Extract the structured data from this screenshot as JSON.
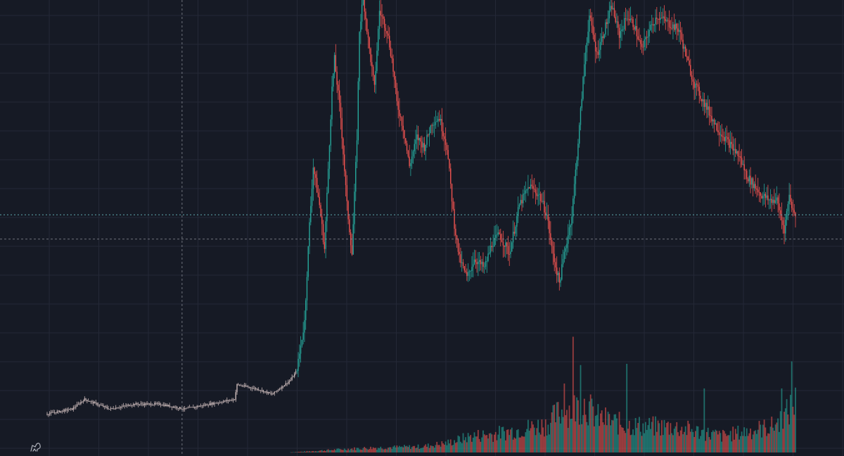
{
  "theme": {
    "background": "#161a25",
    "grid": "#242836",
    "up": "#26a69a",
    "down": "#ef5350",
    "line": "#c9b8b8",
    "crosshair": "#9598a1",
    "price_line": "#5fa8b0",
    "logo_color": "#b2b5be"
  },
  "logo": {
    "icon": "tradingview-logo-icon"
  },
  "crosshair": {
    "x_index": 108,
    "price": 0.47
  },
  "price_lines": [
    {
      "price": 0.52
    }
  ],
  "chart_data": {
    "type": "candlestick",
    "x_count": 600,
    "ylim": [
      0,
      1
    ],
    "volume_ylim": [
      0,
      1
    ],
    "grid": true,
    "price_anchors": [
      [
        0,
        0.11
      ],
      [
        20,
        0.12
      ],
      [
        30,
        0.14
      ],
      [
        50,
        0.12
      ],
      [
        70,
        0.13
      ],
      [
        90,
        0.13
      ],
      [
        110,
        0.12
      ],
      [
        130,
        0.13
      ],
      [
        150,
        0.14
      ],
      [
        152,
        0.17
      ],
      [
        170,
        0.16
      ],
      [
        180,
        0.15
      ],
      [
        190,
        0.17
      ],
      [
        195,
        0.18
      ],
      [
        200,
        0.2
      ],
      [
        206,
        0.3
      ],
      [
        210,
        0.5
      ],
      [
        213,
        0.62
      ],
      [
        218,
        0.54
      ],
      [
        222,
        0.45
      ],
      [
        228,
        0.78
      ],
      [
        230,
        0.84
      ],
      [
        235,
        0.72
      ],
      [
        240,
        0.54
      ],
      [
        244,
        0.44
      ],
      [
        248,
        0.68
      ],
      [
        250,
        0.9
      ],
      [
        253,
        0.97
      ],
      [
        257,
        0.88
      ],
      [
        262,
        0.78
      ],
      [
        266,
        0.94
      ],
      [
        272,
        0.9
      ],
      [
        276,
        0.84
      ],
      [
        280,
        0.75
      ],
      [
        285,
        0.7
      ],
      [
        290,
        0.62
      ],
      [
        296,
        0.68
      ],
      [
        302,
        0.66
      ],
      [
        308,
        0.71
      ],
      [
        314,
        0.72
      ],
      [
        320,
        0.66
      ],
      [
        326,
        0.5
      ],
      [
        330,
        0.43
      ],
      [
        336,
        0.39
      ],
      [
        342,
        0.43
      ],
      [
        350,
        0.41
      ],
      [
        356,
        0.46
      ],
      [
        362,
        0.48
      ],
      [
        370,
        0.44
      ],
      [
        378,
        0.54
      ],
      [
        386,
        0.58
      ],
      [
        394,
        0.56
      ],
      [
        400,
        0.52
      ],
      [
        404,
        0.45
      ],
      [
        410,
        0.38
      ],
      [
        414,
        0.44
      ],
      [
        420,
        0.52
      ],
      [
        426,
        0.7
      ],
      [
        430,
        0.83
      ],
      [
        434,
        0.93
      ],
      [
        440,
        0.85
      ],
      [
        446,
        0.9
      ],
      [
        452,
        0.95
      ],
      [
        458,
        0.89
      ],
      [
        464,
        0.93
      ],
      [
        470,
        0.91
      ],
      [
        476,
        0.86
      ],
      [
        482,
        0.9
      ],
      [
        488,
        0.93
      ],
      [
        494,
        0.92
      ],
      [
        500,
        0.91
      ],
      [
        506,
        0.9
      ],
      [
        512,
        0.84
      ],
      [
        518,
        0.79
      ],
      [
        524,
        0.76
      ],
      [
        530,
        0.73
      ],
      [
        536,
        0.7
      ],
      [
        542,
        0.68
      ],
      [
        548,
        0.66
      ],
      [
        554,
        0.64
      ],
      [
        560,
        0.6
      ],
      [
        566,
        0.58
      ],
      [
        572,
        0.56
      ],
      [
        578,
        0.55
      ],
      [
        584,
        0.55
      ],
      [
        590,
        0.49
      ],
      [
        594,
        0.56
      ],
      [
        598,
        0.52
      ]
    ],
    "volume_anchors": [
      [
        0,
        0.0
      ],
      [
        190,
        0.0
      ],
      [
        210,
        0.01
      ],
      [
        240,
        0.03
      ],
      [
        260,
        0.04
      ],
      [
        300,
        0.05
      ],
      [
        320,
        0.08
      ],
      [
        340,
        0.14
      ],
      [
        360,
        0.16
      ],
      [
        380,
        0.2
      ],
      [
        400,
        0.24
      ],
      [
        410,
        0.34
      ],
      [
        420,
        0.37
      ],
      [
        430,
        0.42
      ],
      [
        440,
        0.3
      ],
      [
        460,
        0.24
      ],
      [
        480,
        0.22
      ],
      [
        500,
        0.22
      ],
      [
        520,
        0.18
      ],
      [
        540,
        0.14
      ],
      [
        560,
        0.18
      ],
      [
        580,
        0.22
      ],
      [
        590,
        0.3
      ],
      [
        598,
        0.42
      ]
    ],
    "volume_spikes": [
      [
        414,
        0.56
      ],
      [
        421,
        0.94
      ],
      [
        427,
        0.71
      ],
      [
        464,
        0.72
      ],
      [
        526,
        0.52
      ],
      [
        588,
        0.52
      ],
      [
        596,
        0.74
      ]
    ]
  }
}
